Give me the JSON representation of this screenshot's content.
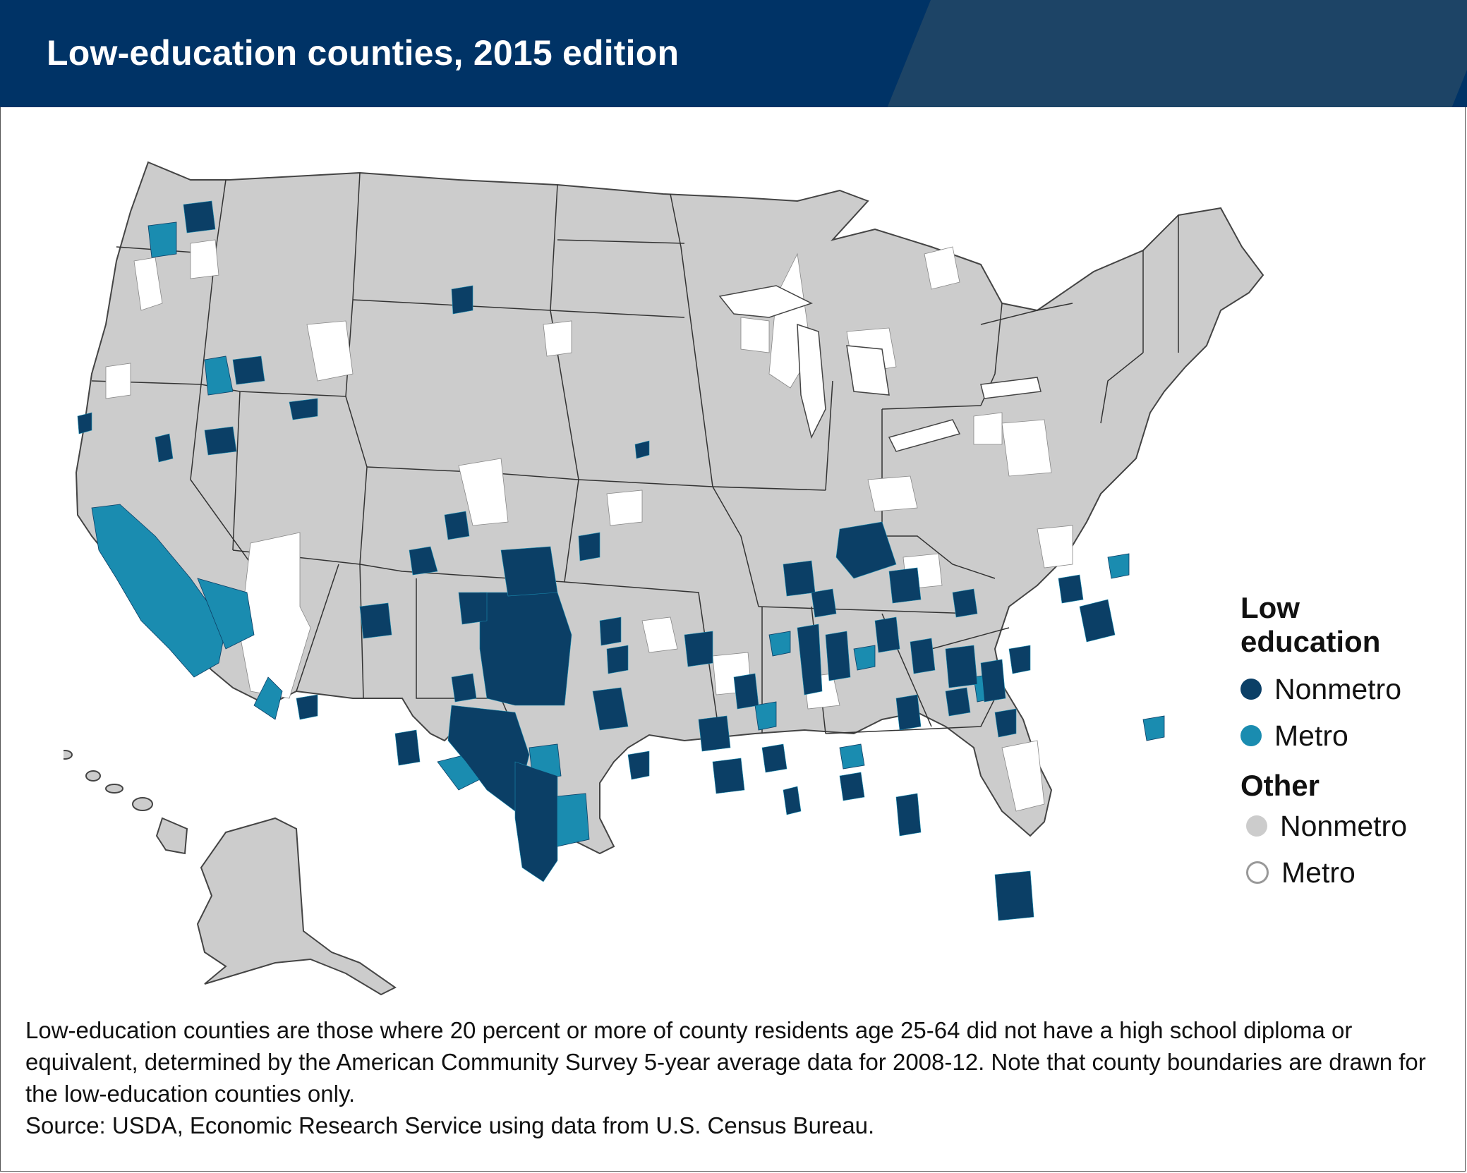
{
  "header": {
    "title": "Low-education counties, 2015 edition",
    "bg_color": "#003366",
    "tab_color": "#1d4466"
  },
  "legend": {
    "group_low": {
      "heading_line1": "Low",
      "heading_line2": "education"
    },
    "low_nonmetro": {
      "label": "Nonmetro",
      "color": "#0b3f66"
    },
    "low_metro": {
      "label": "Metro",
      "color": "#1a8cb0"
    },
    "group_other": {
      "heading": "Other"
    },
    "other_nonmetro": {
      "label": "Nonmetro",
      "color": "#cccccc"
    },
    "other_metro": {
      "label": "Metro",
      "color": "#ffffff"
    }
  },
  "notes": {
    "definition": "Low-education counties are those where 20 percent or more of county residents age 25-64 did not have a high school diploma or equivalent, determined by the American Community Survey 5-year average data for 2008-12. Note that county boundaries are drawn for the low-education counties only.",
    "source": "Source: USDA, Economic Research Service using data from U.S. Census Bureau."
  }
}
